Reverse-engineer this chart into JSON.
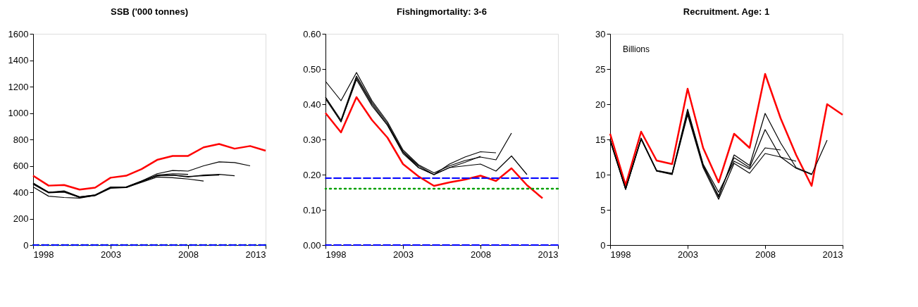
{
  "chart_data": [
    {
      "type": "line",
      "title": "SSB ('000 tonnes)",
      "xlim": [
        1998,
        2013
      ],
      "xticks": [
        1998,
        2003,
        2008,
        2013
      ],
      "ylim": [
        0,
        1600
      ],
      "yticks": [
        0,
        200,
        400,
        600,
        800,
        1000,
        1200,
        1400,
        1600
      ],
      "grid": false,
      "legend": false,
      "marker": "none",
      "series": [
        {
          "color": "#ff0000",
          "x": [
            1998,
            1999,
            2000,
            2001,
            2002,
            2003,
            2004,
            2005,
            2006,
            2007,
            2008,
            2009,
            2010,
            2011,
            2012,
            2013
          ],
          "values": [
            525,
            450,
            455,
            420,
            435,
            510,
            525,
            575,
            645,
            675,
            675,
            740,
            765,
            730,
            750,
            715
          ]
        },
        {
          "color": "#000000",
          "x": [
            1998,
            1999,
            2000,
            2001,
            2002,
            2003,
            2004,
            2005,
            2006,
            2007,
            2008,
            2009,
            2010,
            2011,
            2012
          ],
          "values": [
            465,
            400,
            410,
            365,
            380,
            435,
            440,
            485,
            540,
            565,
            560,
            600,
            630,
            625,
            600
          ]
        },
        {
          "color": "#000000",
          "x": [
            1998,
            1999,
            2000,
            2001,
            2002,
            2003,
            2004,
            2005,
            2006,
            2007,
            2008,
            2009,
            2010,
            2011
          ],
          "values": [
            470,
            400,
            405,
            360,
            375,
            435,
            435,
            480,
            525,
            530,
            515,
            530,
            535,
            525
          ]
        },
        {
          "color": "#000000",
          "x": [
            1998,
            1999,
            2000,
            2001,
            2002,
            2003,
            2004,
            2005,
            2006,
            2007,
            2008,
            2009,
            2010
          ],
          "values": [
            465,
            400,
            405,
            365,
            380,
            440,
            440,
            485,
            525,
            530,
            520,
            525,
            530
          ]
        },
        {
          "color": "#000000",
          "x": [
            1998,
            1999,
            2000,
            2001,
            2002,
            2003,
            2004,
            2005,
            2006,
            2007,
            2008,
            2009
          ],
          "values": [
            440,
            370,
            360,
            355,
            375,
            430,
            435,
            475,
            515,
            510,
            500,
            485
          ]
        },
        {
          "color": "#000000",
          "x": [
            1998,
            1999,
            2000,
            2001,
            2002,
            2003,
            2004,
            2005,
            2006,
            2007,
            2008
          ],
          "values": [
            460,
            395,
            400,
            360,
            375,
            435,
            435,
            480,
            530,
            540,
            535
          ]
        }
      ],
      "ref_lines": [
        {
          "axis": "y",
          "value": 0,
          "color": "#00a000",
          "line_style": "dotted"
        },
        {
          "axis": "y",
          "value": 0,
          "color": "#0000ff",
          "line_style": "dashed"
        }
      ]
    },
    {
      "type": "line",
      "title": "Fishingmortality: 3-6",
      "xlim": [
        1998,
        2013
      ],
      "xticks": [
        1998,
        2003,
        2008,
        2013
      ],
      "ylim": [
        0,
        0.6
      ],
      "yticks": [
        {
          "value": 0,
          "label": "0.00"
        },
        {
          "value": 0.1,
          "label": "0.10"
        },
        {
          "value": 0.2,
          "label": "0.20"
        },
        {
          "value": 0.3,
          "label": "0.30"
        },
        {
          "value": 0.4,
          "label": "0.40"
        },
        {
          "value": 0.5,
          "label": "0.50"
        },
        {
          "value": 0.6,
          "label": "0.60"
        }
      ],
      "grid": false,
      "legend": false,
      "marker": "none",
      "series": [
        {
          "color": "#ff0000",
          "x": [
            1998,
            1999,
            2000,
            2001,
            2002,
            2003,
            2004,
            2005,
            2006,
            2007,
            2008,
            2009,
            2010,
            2011,
            2012
          ],
          "values": [
            0.375,
            0.32,
            0.42,
            0.355,
            0.305,
            0.23,
            0.195,
            0.168,
            0.178,
            0.186,
            0.197,
            0.182,
            0.218,
            0.17,
            0.133
          ]
        },
        {
          "color": "#000000",
          "x": [
            1998,
            1999,
            2000,
            2001,
            2002,
            2003,
            2004,
            2005,
            2006,
            2007,
            2008,
            2009,
            2010,
            2011
          ],
          "values": [
            0.42,
            0.355,
            0.48,
            0.405,
            0.345,
            0.265,
            0.225,
            0.2,
            0.22,
            0.225,
            0.23,
            0.21,
            0.253,
            0.2
          ]
        },
        {
          "color": "#000000",
          "x": [
            1998,
            1999,
            2000,
            2001,
            2002,
            2003,
            2004,
            2005,
            2006,
            2007,
            2008,
            2009,
            2010
          ],
          "values": [
            0.465,
            0.41,
            0.49,
            0.41,
            0.35,
            0.27,
            0.228,
            0.205,
            0.225,
            0.24,
            0.25,
            0.242,
            0.318
          ]
        },
        {
          "color": "#000000",
          "x": [
            1998,
            1999,
            2000,
            2001,
            2002,
            2003,
            2004,
            2005,
            2006,
            2007,
            2008,
            2009
          ],
          "values": [
            0.42,
            0.35,
            0.475,
            0.4,
            0.34,
            0.265,
            0.22,
            0.2,
            0.23,
            0.25,
            0.265,
            0.262
          ]
        },
        {
          "color": "#000000",
          "x": [
            1998,
            1999,
            2000,
            2001,
            2002,
            2003,
            2004,
            2005,
            2006,
            2007,
            2008
          ],
          "values": [
            0.415,
            0.35,
            0.47,
            0.395,
            0.34,
            0.26,
            0.22,
            0.2,
            0.22,
            0.235,
            0.252
          ]
        }
      ],
      "ref_lines": [
        {
          "axis": "y",
          "value": 0.19,
          "color": "#0000ff",
          "line_style": "dashed"
        },
        {
          "axis": "y",
          "value": 0.16,
          "color": "#00a000",
          "line_style": "dotted"
        },
        {
          "axis": "y",
          "value": 0,
          "color": "#0000ff",
          "line_style": "dashed"
        }
      ]
    },
    {
      "type": "line",
      "title": "Recruitment. Age: 1",
      "xlim": [
        1998,
        2013
      ],
      "xticks": [
        1998,
        2003,
        2008,
        2013
      ],
      "ylim": [
        0,
        30
      ],
      "yticks": [
        0,
        5,
        10,
        15,
        20,
        25,
        30
      ],
      "grid": false,
      "legend": false,
      "marker": "none",
      "annotations": [
        "Billions"
      ],
      "series": [
        {
          "color": "#ff0000",
          "x": [
            1998,
            1999,
            2000,
            2001,
            2002,
            2003,
            2004,
            2005,
            2006,
            2007,
            2008,
            2009,
            2010,
            2011,
            2012,
            2013
          ],
          "values": [
            15.8,
            8.5,
            16.1,
            12.0,
            11.5,
            22.2,
            13.8,
            8.9,
            15.8,
            13.8,
            24.3,
            18.0,
            12.8,
            8.4,
            20.0,
            18.5
          ]
        },
        {
          "color": "#000000",
          "x": [
            1998,
            1999,
            2000,
            2001,
            2002,
            2003,
            2004,
            2005,
            2006,
            2007,
            2008,
            2009,
            2010,
            2011,
            2012
          ],
          "values": [
            14.8,
            7.9,
            15.0,
            10.5,
            10.0,
            18.5,
            11.0,
            6.5,
            11.6,
            10.2,
            13.0,
            12.5,
            10.9,
            10.0,
            14.9
          ]
        },
        {
          "color": "#000000",
          "x": [
            1998,
            1999,
            2000,
            2001,
            2002,
            2003,
            2004,
            2005,
            2006,
            2007,
            2008,
            2009,
            2010,
            2011
          ],
          "values": [
            15.0,
            8.0,
            15.2,
            10.6,
            10.1,
            19.0,
            11.4,
            6.8,
            12.8,
            11.3,
            18.7,
            14.5,
            11.0,
            10.1
          ]
        },
        {
          "color": "#000000",
          "x": [
            1998,
            1999,
            2000,
            2001,
            2002,
            2003,
            2004,
            2005,
            2006,
            2007,
            2008,
            2009,
            2010
          ],
          "values": [
            14.9,
            7.9,
            15.1,
            10.5,
            10.1,
            18.8,
            11.2,
            7.0,
            12.4,
            11.0,
            16.4,
            12.5,
            11.9
          ]
        },
        {
          "color": "#000000",
          "x": [
            1998,
            1999,
            2000,
            2001,
            2002,
            2003,
            2004,
            2005,
            2006,
            2007,
            2008,
            2009
          ],
          "values": [
            15.0,
            8.0,
            15.1,
            10.6,
            10.2,
            19.3,
            11.5,
            7.5,
            11.9,
            10.8,
            13.8,
            13.5
          ]
        }
      ]
    }
  ]
}
